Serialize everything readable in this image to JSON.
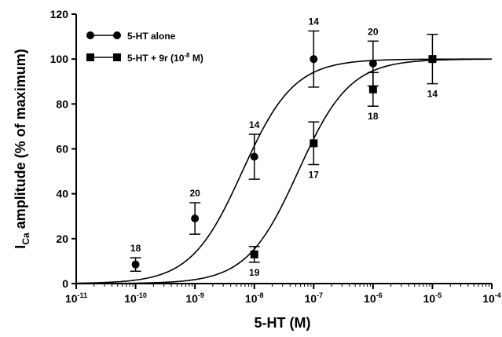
{
  "chart_data": {
    "type": "scatter",
    "title": "",
    "xlabel": "5-HT (M)",
    "ylabel": {
      "prefix": "I",
      "subscript": "Ca",
      "suffix": " amplitude (% of maximum)"
    },
    "x_scale": "log",
    "xlim": [
      1e-11,
      0.0001
    ],
    "ylim": [
      0,
      120
    ],
    "x_ticks": [
      {
        "base": "10",
        "exp": "-11",
        "value": 1e-11
      },
      {
        "base": "10",
        "exp": "-10",
        "value": 1e-10
      },
      {
        "base": "10",
        "exp": "-9",
        "value": 1e-09
      },
      {
        "base": "10",
        "exp": "-8",
        "value": 1e-08
      },
      {
        "base": "10",
        "exp": "-7",
        "value": 1e-07
      },
      {
        "base": "10",
        "exp": "-6",
        "value": 1e-06
      },
      {
        "base": "10",
        "exp": "-5",
        "value": 1e-05
      },
      {
        "base": "10",
        "exp": "-4",
        "value": 0.0001
      }
    ],
    "y_ticks": [
      "0",
      "20",
      "40",
      "60",
      "80",
      "100",
      "120"
    ],
    "grid": false,
    "legend": "top-left",
    "series": [
      {
        "name": "5-HT alone",
        "marker": "circle",
        "color": "#000000",
        "fit": {
          "ec50": 6.3e-09,
          "max": 100,
          "hill": 1
        },
        "points": [
          {
            "x": 1e-10,
            "y": 8.5,
            "err": 3,
            "n": "18",
            "n_pos": "above"
          },
          {
            "x": 1e-09,
            "y": 29,
            "err": 7,
            "n": "20",
            "n_pos": "above"
          },
          {
            "x": 1e-08,
            "y": 56.5,
            "err": 10,
            "n": "14",
            "n_pos": "above"
          },
          {
            "x": 1e-07,
            "y": 100,
            "err": 12.5,
            "n": "14",
            "n_pos": "above"
          },
          {
            "x": 1e-06,
            "y": 98,
            "err": 10,
            "n": "20",
            "n_pos": "above"
          }
        ]
      },
      {
        "name": "5-HT + 9r (10",
        "name_sup": "-8",
        "name_end": " M)",
        "marker": "square",
        "color": "#000000",
        "fit": {
          "ec50": 5.5e-08,
          "max": 100,
          "hill": 1
        },
        "points": [
          {
            "x": 1e-08,
            "y": 13,
            "err": 3.5,
            "n": "19",
            "n_pos": "below"
          },
          {
            "x": 1e-07,
            "y": 62.5,
            "err": 9.5,
            "n": "17",
            "n_pos": "below"
          },
          {
            "x": 1e-06,
            "y": 86.5,
            "err": 7.5,
            "n": "18",
            "n_pos": "below"
          },
          {
            "x": 1e-05,
            "y": 100,
            "err": 11,
            "n": "14",
            "n_pos": "below"
          }
        ]
      }
    ]
  }
}
